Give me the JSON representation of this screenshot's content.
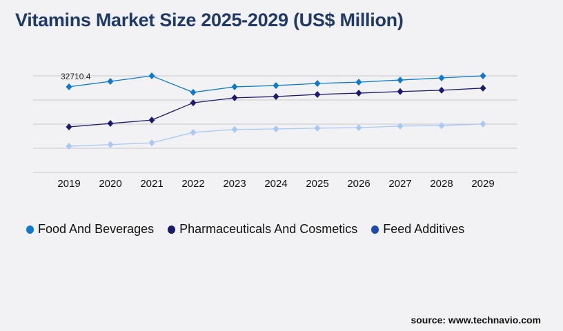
{
  "chart_data": {
    "type": "line",
    "title": "Vitamins Market Size 2025-2029 (US$ Million)",
    "x": [
      "2019",
      "2020",
      "2021",
      "2022",
      "2023",
      "2024",
      "2025",
      "2026",
      "2027",
      "2028",
      "2029"
    ],
    "series": [
      {
        "name": "Food And Beverages",
        "color": "#0a7ad4",
        "legend_color": "#0a7ad4",
        "values": [
          32710.4,
          34800,
          36900,
          30600,
          32700,
          33200,
          34000,
          34500,
          35300,
          36100,
          36900
        ]
      },
      {
        "name": "Pharmaceuticals And Cosmetics",
        "color": "#1a1a72",
        "legend_color": "#1a1a72",
        "values": [
          17400,
          18700,
          20000,
          26600,
          28500,
          29000,
          29800,
          30300,
          30900,
          31400,
          32200
        ]
      },
      {
        "name": "Feed Additives",
        "color": "#a8c8f6",
        "legend_color": "#1f48b0",
        "values": [
          10000,
          10600,
          11300,
          15300,
          16400,
          16600,
          16900,
          17100,
          17700,
          17900,
          18500
        ]
      }
    ],
    "data_labels": [
      {
        "series": 0,
        "index": 0,
        "text": "32710.4"
      }
    ],
    "ylim": [
      0,
      36900
    ],
    "y_tick_labels_shown": false,
    "grid": true,
    "marker": "diamond",
    "legend_position": "bottom"
  },
  "source": "source: www.technavio.com"
}
